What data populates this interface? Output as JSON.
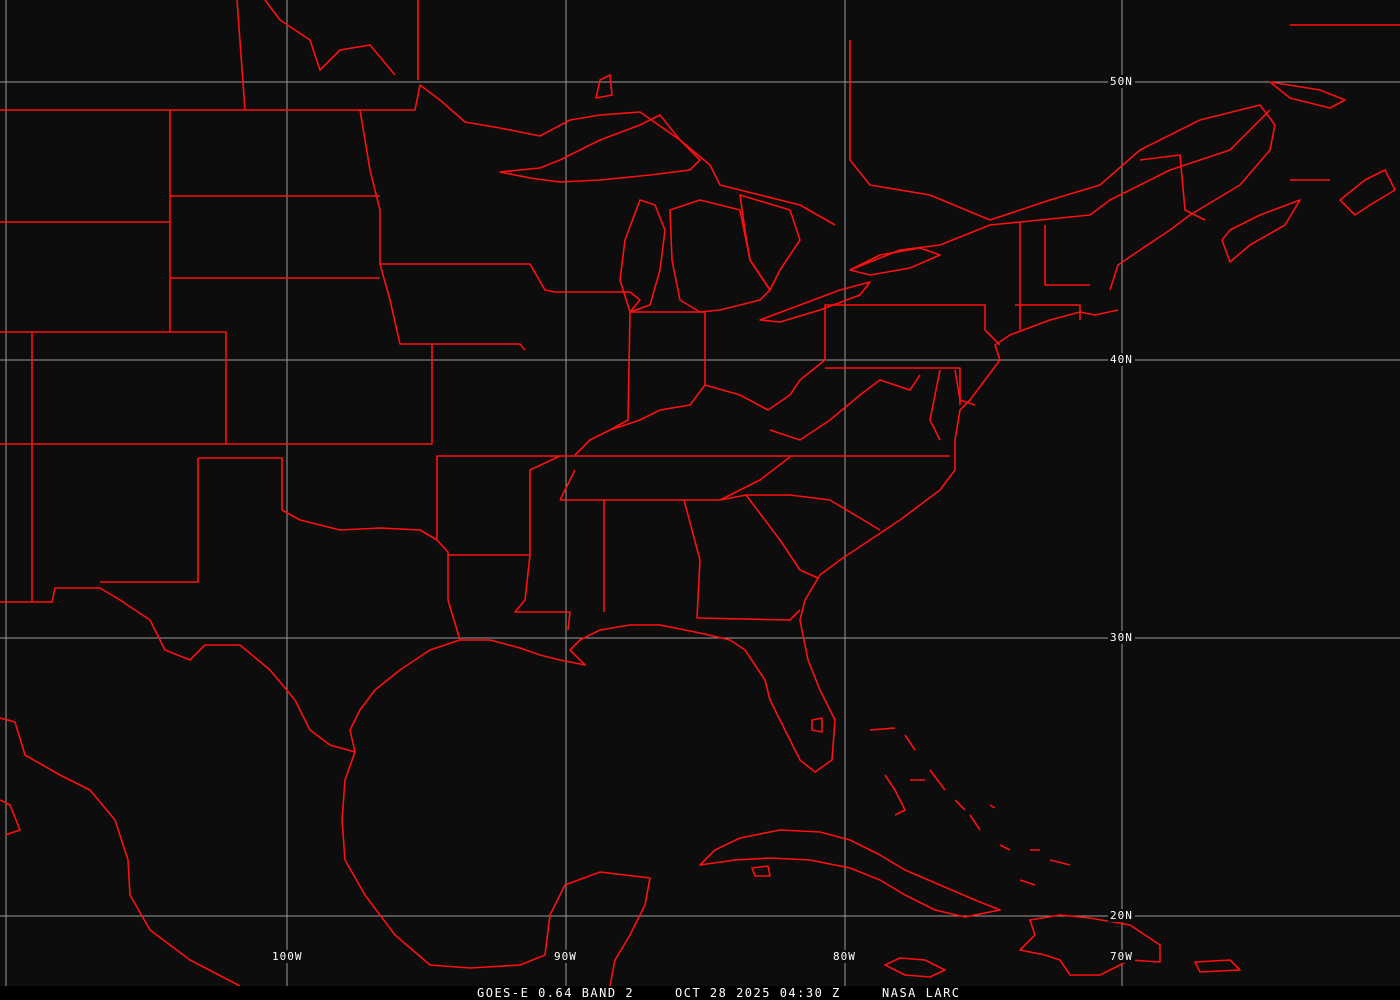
{
  "grid_labels": {
    "lat": [
      "50N",
      "40N",
      "30N",
      "20N"
    ],
    "lon": [
      "100W",
      "90W",
      "80W",
      "70W"
    ]
  },
  "caption": {
    "product": "GOES-E 0.64 BAND 2",
    "datetime": "OCT 28 2025 04:30 Z",
    "source": "NASA LARC"
  },
  "colors": {
    "boundaries": "#ff1010",
    "grid": "#9a9a9a",
    "background": "#0d0d0d"
  }
}
